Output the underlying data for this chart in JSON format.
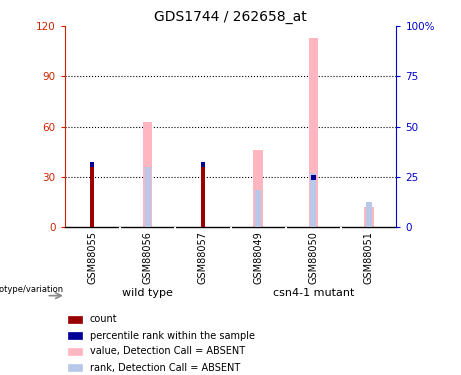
{
  "title": "GDS1744 / 262658_at",
  "samples": [
    "GSM88055",
    "GSM88056",
    "GSM88057",
    "GSM88049",
    "GSM88050",
    "GSM88051"
  ],
  "count_values": [
    36,
    0,
    36,
    0,
    0,
    0
  ],
  "percentile_values": [
    33,
    0,
    31,
    0,
    31,
    0
  ],
  "value_absent": [
    0,
    63,
    0,
    46,
    113,
    12
  ],
  "rank_absent": [
    0,
    36,
    0,
    22,
    32,
    15
  ],
  "ylim_left": [
    0,
    120
  ],
  "ylim_right": [
    0,
    100
  ],
  "yticks_left": [
    0,
    30,
    60,
    90,
    120
  ],
  "ytick_labels_left": [
    "0",
    "30",
    "60",
    "90",
    "120"
  ],
  "yticks_right": [
    0,
    25,
    50,
    75,
    100
  ],
  "ytick_labels_right": [
    "0",
    "25",
    "50",
    "75",
    "100%"
  ],
  "color_count": "#990000",
  "color_percentile": "#000099",
  "color_value_absent": "#FFB6C1",
  "color_rank_absent": "#B8C8E8",
  "left_axis_color": "#cc2200",
  "right_axis_color": "#0000cc",
  "grid_color": "black",
  "plot_bg": "#ffffff",
  "sample_box_color": "#cccccc",
  "group_color": "#44cc44",
  "legend_items": [
    {
      "label": "count",
      "color": "#990000"
    },
    {
      "label": "percentile rank within the sample",
      "color": "#000099"
    },
    {
      "label": "value, Detection Call = ABSENT",
      "color": "#FFB6C1"
    },
    {
      "label": "rank, Detection Call = ABSENT",
      "color": "#B8C8E8"
    }
  ]
}
